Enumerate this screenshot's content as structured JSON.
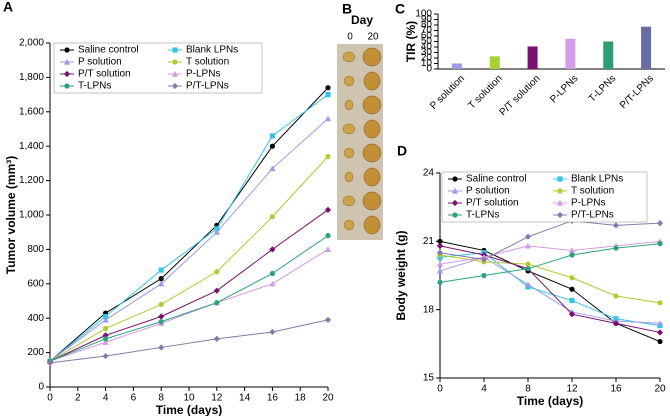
{
  "chart_data": [
    {
      "type": "line",
      "panel_label": "A",
      "xlabel": "Time (days)",
      "ylabel": "Tumor volume (mm³)",
      "x": [
        0,
        4,
        8,
        12,
        16,
        20
      ],
      "xlim": [
        0,
        20
      ],
      "xticks": [
        0,
        2,
        4,
        6,
        8,
        10,
        12,
        14,
        16,
        18,
        20
      ],
      "ylim": [
        0,
        2000
      ],
      "yticks": [
        0,
        200,
        400,
        600,
        800,
        {
          "value": 1000,
          "label": "1,000"
        },
        {
          "value": 1200,
          "label": "1,200"
        },
        {
          "value": 1400,
          "label": "1,400"
        },
        {
          "value": 1600,
          "label": "1,600"
        },
        {
          "value": 1800,
          "label": "1,800"
        },
        {
          "value": 2000,
          "label": "2,000"
        }
      ],
      "legend": "upper left",
      "series": [
        {
          "name": "Saline control",
          "color": "#000000",
          "values": [
            150,
            430,
            630,
            940,
            1400,
            1740
          ]
        },
        {
          "name": "Blank LPNs",
          "color": "#33c5e8",
          "values": [
            150,
            410,
            680,
            920,
            1460,
            1700
          ]
        },
        {
          "name": "P solution",
          "color": "#9b9be8",
          "values": [
            150,
            390,
            600,
            900,
            1270,
            1560
          ]
        },
        {
          "name": "T solution",
          "color": "#b5c931",
          "values": [
            150,
            340,
            480,
            670,
            990,
            1340
          ]
        },
        {
          "name": "P/T solution",
          "color": "#7b1070",
          "values": [
            150,
            300,
            410,
            560,
            800,
            1030
          ]
        },
        {
          "name": "P-LPNs",
          "color": "#d39be8",
          "values": [
            150,
            260,
            370,
            490,
            600,
            800
          ]
        },
        {
          "name": "T-LPNs",
          "color": "#2aa37a",
          "values": [
            150,
            280,
            380,
            490,
            660,
            880
          ]
        },
        {
          "name": "P/T-LPNs",
          "color": "#8878a8",
          "values": [
            140,
            180,
            230,
            280,
            320,
            390
          ]
        }
      ]
    },
    {
      "type": "bar",
      "panel_label": "C",
      "ylabel": "TIR (%)",
      "categories": [
        "P solution",
        "T solution",
        "P/T solution",
        "P-LPNs",
        "T-LPNs",
        "P/T-LPNs"
      ],
      "values": [
        10,
        23,
        41,
        55,
        50,
        77
      ],
      "colors": [
        "#9b9be8",
        "#a6d12f",
        "#7b1070",
        "#d39be8",
        "#2e9e6e",
        "#6a6aa8"
      ],
      "ylim": [
        0,
        100
      ],
      "yticks": [
        0,
        10,
        20,
        30,
        40,
        50,
        60,
        70,
        80,
        90,
        100
      ]
    },
    {
      "type": "line",
      "panel_label": "D",
      "xlabel": "Time (days)",
      "ylabel": "Body weight (g)",
      "x": [
        0,
        4,
        8,
        12,
        16,
        20
      ],
      "xlim": [
        0,
        20
      ],
      "xticks": [
        0,
        4,
        8,
        12,
        16,
        20
      ],
      "ylim": [
        15,
        24
      ],
      "yticks": [
        15,
        18,
        21,
        24
      ],
      "legend": "upper left",
      "series": [
        {
          "name": "Saline control",
          "color": "#000000",
          "values": [
            21.0,
            20.6,
            19.7,
            18.9,
            17.4,
            16.6
          ]
        },
        {
          "name": "Blank LPNs",
          "color": "#33c5e8",
          "values": [
            20.3,
            20.5,
            19.0,
            18.4,
            17.6,
            17.3
          ]
        },
        {
          "name": "P solution",
          "color": "#9b9be8",
          "values": [
            19.7,
            20.3,
            19.1,
            17.9,
            17.5,
            17.4
          ]
        },
        {
          "name": "T solution",
          "color": "#b5c931",
          "values": [
            20.4,
            20.1,
            20.0,
            19.4,
            18.6,
            18.3
          ]
        },
        {
          "name": "P/T solution",
          "color": "#7b1070",
          "values": [
            20.8,
            20.4,
            19.8,
            17.8,
            17.4,
            17.0
          ]
        },
        {
          "name": "P-LPNs",
          "color": "#d39be8",
          "values": [
            20.0,
            20.3,
            20.8,
            20.6,
            20.8,
            21.0
          ]
        },
        {
          "name": "T-LPNs",
          "color": "#2aa37a",
          "values": [
            19.2,
            19.5,
            19.8,
            20.4,
            20.7,
            20.9
          ]
        },
        {
          "name": "P/T-LPNs",
          "color": "#8878a8",
          "values": [
            20.5,
            20.2,
            21.2,
            21.9,
            21.7,
            21.8
          ]
        }
      ]
    }
  ],
  "photo_panel": {
    "panel_label": "B",
    "title": "Day",
    "columns": [
      "0",
      "20"
    ]
  }
}
